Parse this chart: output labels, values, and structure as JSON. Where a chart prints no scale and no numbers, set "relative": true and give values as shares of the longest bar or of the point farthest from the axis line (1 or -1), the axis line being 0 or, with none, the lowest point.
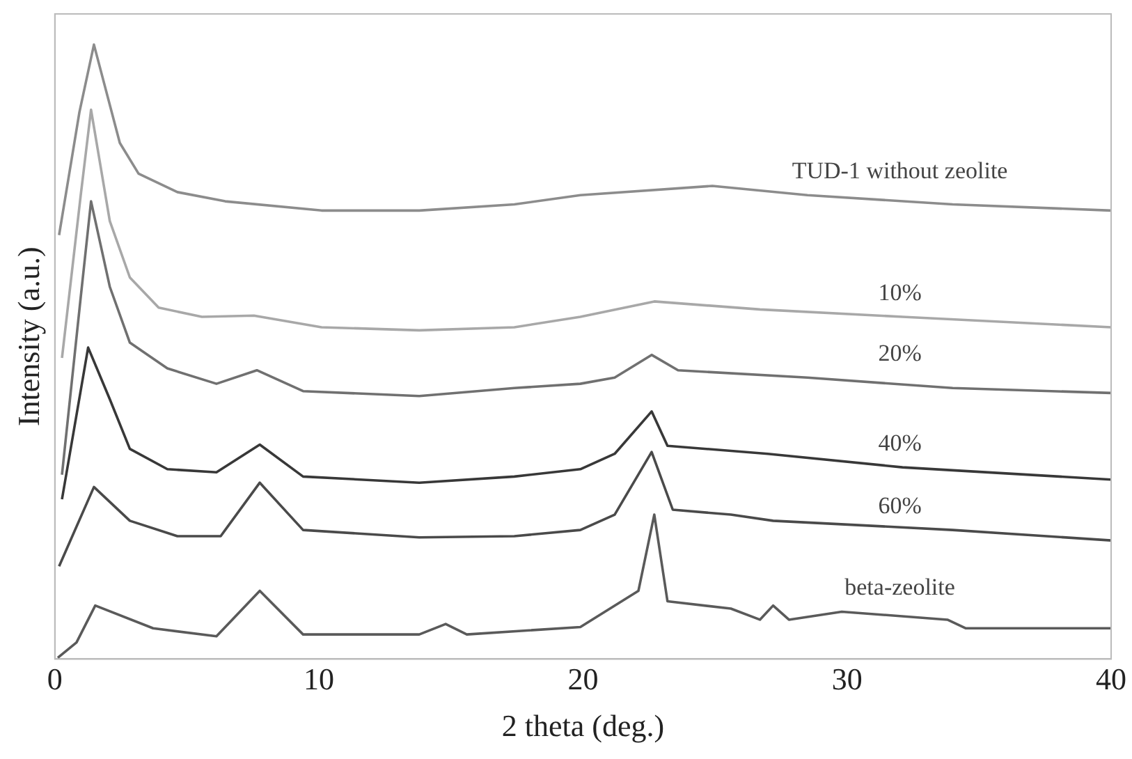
{
  "chart_data": {
    "type": "line",
    "relative": true,
    "xlabel": "2 theta (deg.)",
    "ylabel": "Intensity (a.u.)",
    "xlim": [
      0,
      40
    ],
    "xticks": [
      0,
      10,
      20,
      30,
      40
    ],
    "grid": false,
    "legend": false,
    "marker": "none",
    "line_style": "solid",
    "series": [
      {
        "name": "TUD-1 without zeolite",
        "color": "#8c8c8c",
        "x": [
          0.16,
          0.93,
          1.48,
          2.46,
          3.17,
          4.64,
          6.45,
          10.1,
          13.8,
          17.4,
          19.9,
          24.9,
          28.5,
          34.0,
          40
        ],
        "values": [
          0.69,
          0.89,
          1.0,
          0.84,
          0.79,
          0.76,
          0.745,
          0.73,
          0.73,
          0.74,
          0.755,
          0.77,
          0.755,
          0.74,
          0.73
        ]
      },
      {
        "name": "10%",
        "color": "#a8a8a8",
        "x": [
          0.27,
          0.98,
          1.37,
          2.08,
          2.84,
          3.93,
          5.57,
          7.54,
          10.1,
          13.8,
          17.4,
          19.9,
          22.7,
          26.7,
          32.1,
          40
        ],
        "values": [
          0.49,
          0.755,
          0.894,
          0.713,
          0.621,
          0.572,
          0.557,
          0.559,
          0.54,
          0.535,
          0.54,
          0.557,
          0.582,
          0.569,
          0.557,
          0.54
        ]
      },
      {
        "name": "20%",
        "color": "#707070",
        "x": [
          0.27,
          0.98,
          1.37,
          2.08,
          2.84,
          4.26,
          6.12,
          7.65,
          9.4,
          13.8,
          17.4,
          19.9,
          21.2,
          22.6,
          23.6,
          28.5,
          34.0,
          40
        ],
        "values": [
          0.3,
          0.589,
          0.745,
          0.606,
          0.515,
          0.473,
          0.448,
          0.47,
          0.436,
          0.428,
          0.441,
          0.448,
          0.458,
          0.495,
          0.47,
          0.458,
          0.441,
          0.433
        ]
      },
      {
        "name": "40%",
        "color": "#383838",
        "x": [
          0.27,
          1.26,
          2.08,
          2.84,
          4.26,
          6.12,
          7.76,
          9.4,
          13.8,
          17.4,
          19.9,
          21.2,
          22.6,
          23.2,
          27.0,
          32.1,
          40
        ],
        "values": [
          0.26,
          0.507,
          0.423,
          0.342,
          0.309,
          0.304,
          0.349,
          0.297,
          0.287,
          0.297,
          0.309,
          0.334,
          0.403,
          0.347,
          0.334,
          0.312,
          0.292
        ]
      },
      {
        "name": "60%",
        "color": "#4a4a4a",
        "x": [
          0.16,
          1.48,
          2.84,
          4.64,
          6.28,
          7.76,
          9.4,
          13.8,
          17.4,
          19.9,
          21.2,
          22.6,
          23.4,
          25.6,
          27.2,
          34.0,
          40
        ],
        "values": [
          0.151,
          0.28,
          0.225,
          0.2,
          0.2,
          0.287,
          0.21,
          0.198,
          0.2,
          0.21,
          0.235,
          0.337,
          0.243,
          0.235,
          0.225,
          0.21,
          0.193
        ]
      },
      {
        "name": "beta-zeolite",
        "color": "#5a5a5a",
        "x": [
          0.11,
          0.82,
          1.53,
          3.72,
          6.12,
          7.76,
          9.4,
          13.8,
          14.8,
          15.6,
          19.9,
          22.1,
          22.7,
          23.2,
          25.6,
          26.7,
          27.2,
          27.8,
          29.8,
          33.8,
          34.5,
          40
        ],
        "values": [
          0.002,
          0.027,
          0.087,
          0.05,
          0.037,
          0.111,
          0.04,
          0.04,
          0.057,
          0.04,
          0.052,
          0.111,
          0.235,
          0.094,
          0.082,
          0.064,
          0.087,
          0.064,
          0.077,
          0.064,
          0.05,
          0.05
        ]
      }
    ]
  }
}
